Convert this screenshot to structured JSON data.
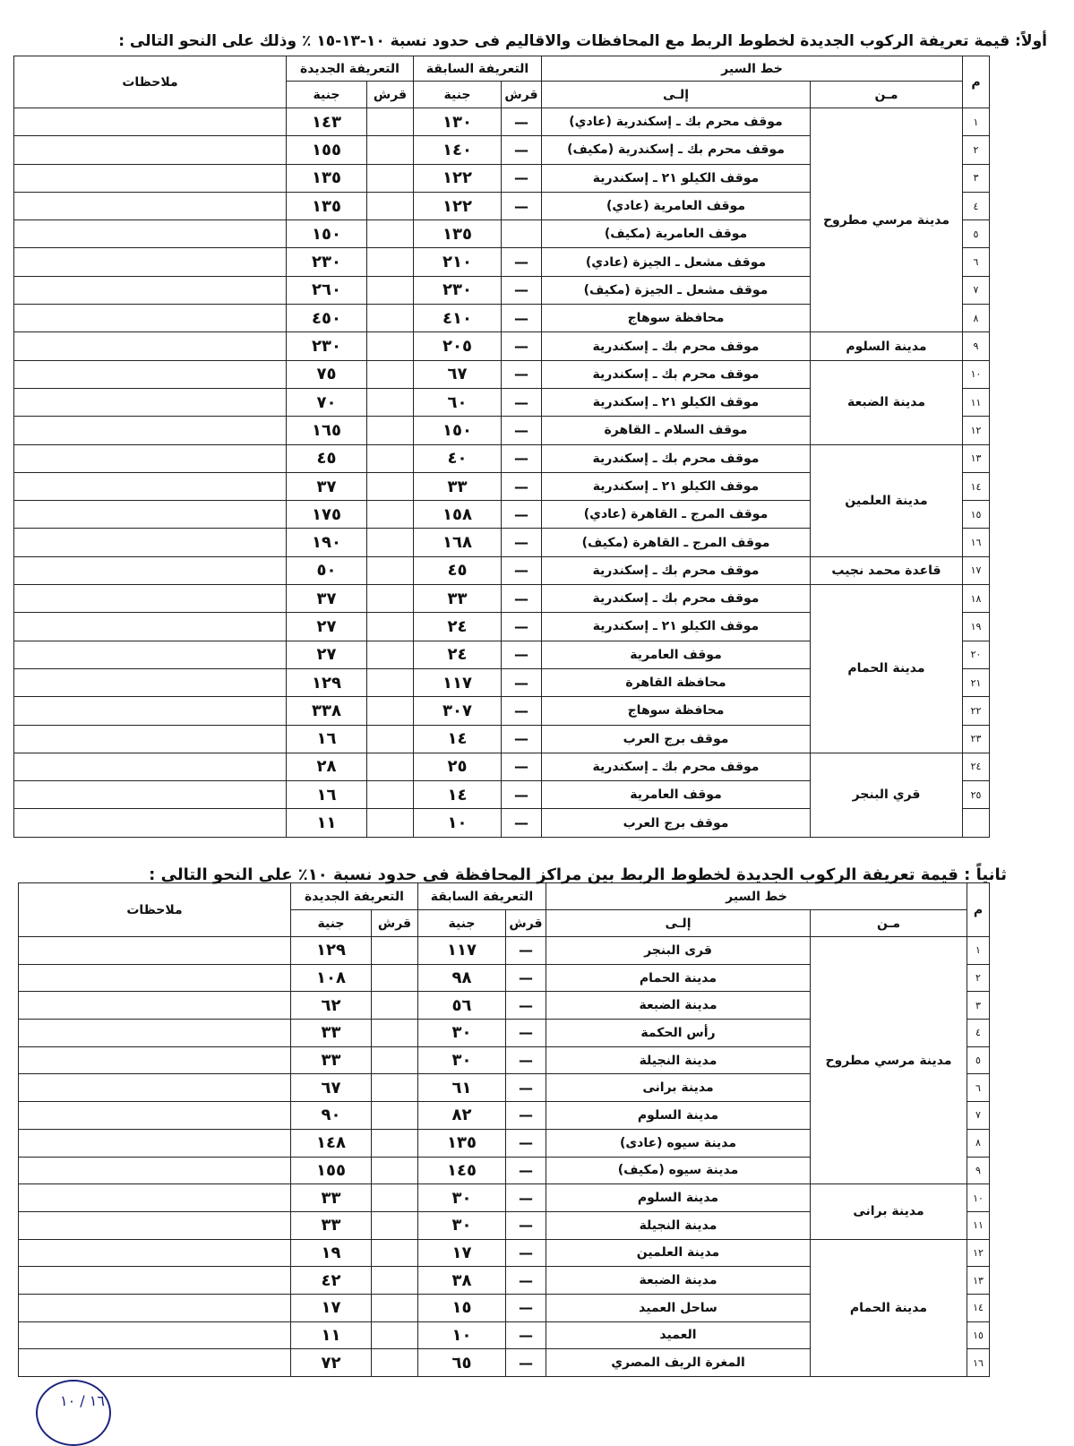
{
  "section1": {
    "title": "أولاً: قيمة تعريفة الركوب الجديدة لخطوط الربط مع المحافظات والاقاليم فى حدود نسبة ١٠-١٣-١٥ ٪ وذلك على النحو التالى :",
    "headers": {
      "num": "م",
      "route": "خط السير",
      "from": "مـن",
      "to": "إلـى",
      "old": "التعريفة السابقة",
      "new": "التعريفة الجديدة",
      "qirsh": "قرش",
      "pound": "جنية",
      "notes": "ملاحظات"
    },
    "groups": [
      {
        "from": "مدينة مرسي مطروح",
        "rows": [
          {
            "n": "١",
            "to": "موقف محرم بك ـ إسكندرية (عادي)",
            "old_q": "—",
            "old_p": "١٣٠",
            "new_p": "١٤٣"
          },
          {
            "n": "٢",
            "to": "موقف محرم بك ـ إسكندرية (مكيف)",
            "old_q": "—",
            "old_p": "١٤٠",
            "new_p": "١٥٥"
          },
          {
            "n": "٣",
            "to": "موقف الكيلو ٢١ ـ إسكندرية",
            "old_q": "—",
            "old_p": "١٢٢",
            "new_p": "١٣٥"
          },
          {
            "n": "٤",
            "to": "موقف العامرية (عادي)",
            "old_q": "—",
            "old_p": "١٢٢",
            "new_p": "١٣٥"
          },
          {
            "n": "٥",
            "to": "موقف العامرية (مكيف)",
            "old_q": "",
            "old_p": "١٣٥",
            "new_p": "١٥٠"
          },
          {
            "n": "٦",
            "to": "موقف مشعل ـ الجيزة (عادي)",
            "old_q": "—",
            "old_p": "٢١٠",
            "new_p": "٢٣٠"
          },
          {
            "n": "٧",
            "to": "موقف مشعل ـ الجيزة (مكيف)",
            "old_q": "—",
            "old_p": "٢٣٠",
            "new_p": "٢٦٠"
          },
          {
            "n": "٨",
            "to": "محافظة سوهاج",
            "old_q": "—",
            "old_p": "٤١٠",
            "new_p": "٤٥٠"
          }
        ]
      },
      {
        "from": "مدينة السلوم",
        "rows": [
          {
            "n": "٩",
            "to": "موقف محرم بك ـ إسكندرية",
            "old_q": "—",
            "old_p": "٢٠٥",
            "new_p": "٢٣٠"
          }
        ]
      },
      {
        "from": "مدينة الضبعة",
        "rows": [
          {
            "n": "١٠",
            "to": "موقف محرم بك ـ إسكندرية",
            "old_q": "—",
            "old_p": "٦٧",
            "new_p": "٧٥"
          },
          {
            "n": "١١",
            "to": "موقف الكيلو ٢١ ـ إسكندرية",
            "old_q": "—",
            "old_p": "٦٠",
            "new_p": "٧٠"
          },
          {
            "n": "١٢",
            "to": "موقف السلام ـ القاهرة",
            "old_q": "—",
            "old_p": "١٥٠",
            "new_p": "١٦٥"
          }
        ]
      },
      {
        "from": "مدينة العلمين",
        "rows": [
          {
            "n": "١٣",
            "to": "موقف محرم بك ـ إسكندرية",
            "old_q": "—",
            "old_p": "٤٠",
            "new_p": "٤٥"
          },
          {
            "n": "١٤",
            "to": "موقف الكيلو ٢١ ـ إسكندرية",
            "old_q": "—",
            "old_p": "٣٣",
            "new_p": "٣٧"
          },
          {
            "n": "١٥",
            "to": "موقف المرج ـ القاهرة (عادي)",
            "old_q": "—",
            "old_p": "١٥٨",
            "new_p": "١٧٥"
          },
          {
            "n": "١٦",
            "to": "موقف المرج ـ القاهرة (مكيف)",
            "old_q": "—",
            "old_p": "١٦٨",
            "new_p": "١٩٠"
          }
        ]
      },
      {
        "from": "قاعدة محمد نجيب",
        "rows": [
          {
            "n": "١٧",
            "to": "موقف محرم بك ـ إسكندرية",
            "old_q": "—",
            "old_p": "٤٥",
            "new_p": "٥٠"
          }
        ]
      },
      {
        "from": "مدينة الحمام",
        "rows": [
          {
            "n": "١٨",
            "to": "موقف محرم بك ـ إسكندرية",
            "old_q": "—",
            "old_p": "٣٣",
            "new_p": "٣٧"
          },
          {
            "n": "١٩",
            "to": "موقف الكيلو ٢١ ـ إسكندرية",
            "old_q": "—",
            "old_p": "٢٤",
            "new_p": "٢٧"
          },
          {
            "n": "٢٠",
            "to": "موقف العامرية",
            "old_q": "—",
            "old_p": "٢٤",
            "new_p": "٢٧"
          },
          {
            "n": "٢١",
            "to": "محافظة القاهرة",
            "old_q": "—",
            "old_p": "١١٧",
            "new_p": "١٢٩"
          },
          {
            "n": "٢٢",
            "to": "محافظة سوهاج",
            "old_q": "—",
            "old_p": "٣٠٧",
            "new_p": "٣٣٨"
          },
          {
            "n": "٢٣",
            "to": "موقف برج العرب",
            "old_q": "—",
            "old_p": "١٤",
            "new_p": "١٦"
          }
        ]
      },
      {
        "from": "قري البنجر",
        "rows": [
          {
            "n": "٢٤",
            "to": "موقف محرم بك ـ إسكندرية",
            "old_q": "—",
            "old_p": "٢٥",
            "new_p": "٢٨"
          },
          {
            "n": "٢٥",
            "to": "موقف العامرية",
            "old_q": "—",
            "old_p": "١٤",
            "new_p": "١٦"
          },
          {
            "n": "",
            "to": "موقف برج العرب",
            "old_q": "—",
            "old_p": "١٠",
            "new_p": "١١"
          }
        ]
      }
    ]
  },
  "section2": {
    "title": "ثانياً : قيمة تعريفة الركوب الجديدة لخطوط الربط بين مراكز المحافظة فى حدود نسبة ١٠٪ على النحو التالى :",
    "headers": {
      "num": "م",
      "route": "خط السير",
      "from": "مـن",
      "to": "إلـى",
      "old": "التعريفة السابقة",
      "new": "التعريفة الجديدة",
      "qirsh": "قرش",
      "pound": "جنية",
      "notes": "ملاحظات"
    },
    "groups": [
      {
        "from": "مدينة مرسي مطروح",
        "rows": [
          {
            "n": "١",
            "to": "قرى البنجر",
            "old_q": "—",
            "old_p": "١١٧",
            "new_p": "١٢٩"
          },
          {
            "n": "٢",
            "to": "مدينة الحمام",
            "old_q": "—",
            "old_p": "٩٨",
            "new_p": "١٠٨"
          },
          {
            "n": "٣",
            "to": "مدينة الضبعة",
            "old_q": "—",
            "old_p": "٥٦",
            "new_p": "٦٢"
          },
          {
            "n": "٤",
            "to": "رأس الحكمة",
            "old_q": "—",
            "old_p": "٣٠",
            "new_p": "٣٣"
          },
          {
            "n": "٥",
            "to": "مدينة النجيلة",
            "old_q": "—",
            "old_p": "٣٠",
            "new_p": "٣٣"
          },
          {
            "n": "٦",
            "to": "مدينة برانى",
            "old_q": "—",
            "old_p": "٦١",
            "new_p": "٦٧"
          },
          {
            "n": "٧",
            "to": "مدينة السلوم",
            "old_q": "—",
            "old_p": "٨٢",
            "new_p": "٩٠"
          },
          {
            "n": "٨",
            "to": "مدينة سيوه (عادى)",
            "old_q": "—",
            "old_p": "١٣٥",
            "new_p": "١٤٨"
          },
          {
            "n": "٩",
            "to": "مدينة سيوه (مكيف)",
            "old_q": "—",
            "old_p": "١٤٥",
            "new_p": "١٥٥"
          }
        ]
      },
      {
        "from": "مدينة برانى",
        "rows": [
          {
            "n": "١٠",
            "to": "مدينة السلوم",
            "old_q": "—",
            "old_p": "٣٠",
            "new_p": "٣٣"
          },
          {
            "n": "١١",
            "to": "مدينة النجيلة",
            "old_q": "—",
            "old_p": "٣٠",
            "new_p": "٣٣"
          }
        ]
      },
      {
        "from": "مدينة الحمام",
        "rows": [
          {
            "n": "١٢",
            "to": "مدينة العلمين",
            "old_q": "—",
            "old_p": "١٧",
            "new_p": "١٩"
          },
          {
            "n": "١٣",
            "to": "مدينة الضبعة",
            "old_q": "—",
            "old_p": "٣٨",
            "new_p": "٤٢"
          },
          {
            "n": "١٤",
            "to": "ساحل العميد",
            "old_q": "—",
            "old_p": "١٥",
            "new_p": "١٧"
          },
          {
            "n": "١٥",
            "to": "العميد",
            "old_q": "—",
            "old_p": "١٠",
            "new_p": "١١"
          },
          {
            "n": "١٦",
            "to": "المغرة الريف المصري",
            "old_q": "—",
            "old_p": "٦٥",
            "new_p": "٧٢"
          }
        ]
      }
    ]
  },
  "stamp": {
    "text": "١٦ / ١٠"
  }
}
